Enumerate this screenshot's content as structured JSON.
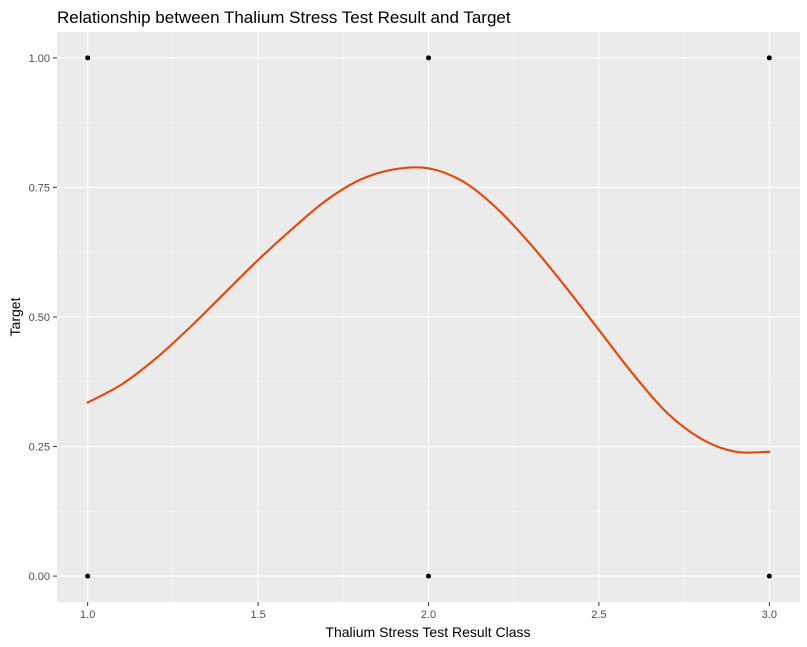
{
  "chart_data": {
    "type": "scatter",
    "title": "Relationship between Thalium Stress Test Result and Target",
    "xlabel": "Thalium Stress Test Result Class",
    "ylabel": "Target",
    "xlim": [
      0.91,
      3.09
    ],
    "ylim": [
      -0.05,
      1.05
    ],
    "x_ticks": [
      1.0,
      1.5,
      2.0,
      2.5,
      3.0
    ],
    "x_tick_labels": [
      "1.0",
      "1.5",
      "2.0",
      "2.5",
      "3.0"
    ],
    "x_minor_ticks": [
      1.25,
      1.75,
      2.25,
      2.75
    ],
    "y_ticks": [
      0,
      0.25,
      0.5,
      0.75,
      1.0
    ],
    "y_tick_labels": [
      "0.00",
      "0.25",
      "0.50",
      "0.75",
      "1.00"
    ],
    "y_minor_ticks": [
      0.125,
      0.375,
      0.625,
      0.875
    ],
    "grid": true,
    "legend": "none",
    "points": {
      "x": [
        1,
        1,
        2,
        2,
        3,
        3
      ],
      "y": [
        0,
        1,
        0,
        1,
        0,
        1
      ]
    },
    "smooth_line": {
      "x": [
        1.0,
        1.1,
        1.2,
        1.3,
        1.4,
        1.5,
        1.6,
        1.7,
        1.8,
        1.9,
        2.0,
        2.1,
        2.2,
        2.3,
        2.4,
        2.5,
        2.6,
        2.7,
        2.8,
        2.9,
        3.0
      ],
      "y": [
        0.335,
        0.37,
        0.42,
        0.48,
        0.545,
        0.61,
        0.67,
        0.725,
        0.765,
        0.785,
        0.787,
        0.762,
        0.71,
        0.64,
        0.56,
        0.475,
        0.39,
        0.315,
        0.265,
        0.24,
        0.24
      ]
    },
    "colors": {
      "panel_background": "#ebebeb",
      "grid_major": "#ffffff",
      "grid_minor": "#f7f7f7",
      "line": "#e34a0e",
      "point": "#000000"
    }
  }
}
